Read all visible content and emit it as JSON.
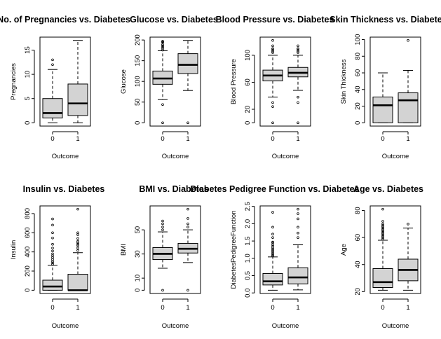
{
  "chart_data": [
    {
      "type": "boxplot",
      "title": "No. of Pregnancies vs. Diabetes",
      "xlabel": "Outcome",
      "ylabel": "Pregnancies",
      "categories": [
        "0",
        "1"
      ],
      "ylim": [
        0,
        17
      ],
      "yticks": [
        0,
        5,
        10,
        15
      ],
      "boxes": [
        {
          "min": 0,
          "q1": 1,
          "median": 2,
          "q3": 5,
          "max": 11,
          "outliers": [
            12,
            13
          ]
        },
        {
          "min": 0,
          "q1": 1.5,
          "median": 4,
          "q3": 8,
          "max": 17,
          "outliers": []
        }
      ]
    },
    {
      "type": "boxplot",
      "title": "Glucose vs. Diabetes",
      "xlabel": "Outcome",
      "ylabel": "Glucose",
      "categories": [
        "0",
        "1"
      ],
      "ylim": [
        0,
        199
      ],
      "yticks": [
        0,
        50,
        100,
        150,
        200
      ],
      "boxes": [
        {
          "min": 56,
          "q1": 93,
          "median": 107,
          "q3": 125,
          "max": 174,
          "outliers": [
            0,
            44,
            176,
            180,
            183,
            186,
            189,
            194,
            196,
            197
          ]
        },
        {
          "min": 78,
          "q1": 119,
          "median": 140,
          "q3": 167,
          "max": 199,
          "outliers": [
            0
          ]
        }
      ]
    },
    {
      "type": "boxplot",
      "title": "Blood Pressure vs. Diabetes",
      "xlabel": "Outcome",
      "ylabel": "Blood Pressure",
      "categories": [
        "0",
        "1"
      ],
      "ylim": [
        0,
        122
      ],
      "yticks": [
        0,
        20,
        60,
        100
      ],
      "boxes": [
        {
          "min": 38,
          "q1": 62,
          "median": 70,
          "q3": 78,
          "max": 100,
          "outliers": [
            0,
            24,
            30,
            104,
            106,
            108,
            110,
            114,
            122
          ]
        },
        {
          "min": 48,
          "q1": 68,
          "median": 74,
          "q3": 82,
          "max": 100,
          "outliers": [
            0,
            30,
            38,
            104,
            106,
            108,
            110,
            114
          ]
        }
      ]
    },
    {
      "type": "boxplot",
      "title": "Skin Thickness vs. Diabetes",
      "xlabel": "Outcome",
      "ylabel": "Skin Thickness",
      "categories": [
        "0",
        "1"
      ],
      "ylim": [
        0,
        99
      ],
      "yticks": [
        0,
        20,
        40,
        60,
        80,
        100
      ],
      "boxes": [
        {
          "min": 0,
          "q1": 0,
          "median": 21,
          "q3": 31,
          "max": 60,
          "outliers": []
        },
        {
          "min": 0,
          "q1": 0,
          "median": 27,
          "q3": 36,
          "max": 63,
          "outliers": [
            99
          ]
        }
      ]
    },
    {
      "type": "boxplot",
      "title": "Insulin vs. Diabetes",
      "xlabel": "Outcome",
      "ylabel": "Insulin",
      "categories": [
        "0",
        "1"
      ],
      "ylim": [
        0,
        846
      ],
      "yticks": [
        0,
        200,
        400,
        600,
        800
      ],
      "boxes": [
        {
          "min": 0,
          "q1": 0,
          "median": 39,
          "q3": 105,
          "max": 260,
          "outliers": [
            270,
            285,
            300,
            320,
            340,
            360,
            380,
            410,
            440,
            480,
            545,
            600,
            680,
            744
          ]
        },
        {
          "min": 0,
          "q1": 0,
          "median": 0,
          "q3": 167,
          "max": 392,
          "outliers": [
            415,
            440,
            465,
            480,
            495,
            510,
            540,
            580,
            600,
            846
          ]
        }
      ]
    },
    {
      "type": "boxplot",
      "title": "BMI vs. Diabetes",
      "xlabel": "Outcome",
      "ylabel": "BMI",
      "categories": [
        "0",
        "1"
      ],
      "ylim": [
        0,
        67.1
      ],
      "yticks": [
        0,
        10,
        30,
        50
      ],
      "boxes": [
        {
          "min": 18.2,
          "q1": 25.4,
          "median": 30.1,
          "q3": 35.3,
          "max": 48.3,
          "outliers": [
            0,
            50,
            52.3,
            55,
            57.3
          ]
        },
        {
          "min": 22.9,
          "q1": 30.8,
          "median": 34.3,
          "q3": 38.8,
          "max": 50,
          "outliers": [
            0,
            52.3,
            55,
            59.4,
            67.1
          ]
        }
      ]
    },
    {
      "type": "boxplot",
      "title": "Diabetes Pedigree Function vs. Diabetes",
      "xlabel": "Outcome",
      "ylabel": "DiabetesPedigreeFunction",
      "categories": [
        "0",
        "1"
      ],
      "ylim": [
        0.078,
        2.42
      ],
      "yticks": [
        0.0,
        0.5,
        1.0,
        1.5,
        2.0,
        2.5
      ],
      "ytick_labels": [
        "0.0",
        "0.5",
        "1.0",
        "1.5",
        "2.0",
        "2.5"
      ],
      "boxes": [
        {
          "min": 0.078,
          "q1": 0.23,
          "median": 0.336,
          "q3": 0.562,
          "max": 1.04,
          "outliers": [
            1.07,
            1.1,
            1.14,
            1.18,
            1.22,
            1.26,
            1.3,
            1.35,
            1.39,
            1.45,
            1.47,
            1.6,
            1.7,
            1.9,
            2.33
          ]
        },
        {
          "min": 0.088,
          "q1": 0.262,
          "median": 0.449,
          "q3": 0.728,
          "max": 1.39,
          "outliers": [
            1.6,
            1.73,
            1.9,
            2.14,
            2.29,
            2.42
          ]
        }
      ]
    },
    {
      "type": "boxplot",
      "title": "Age vs. Diabetes",
      "xlabel": "Outcome",
      "ylabel": "Age",
      "categories": [
        "0",
        "1"
      ],
      "ylim": [
        21,
        81
      ],
      "yticks": [
        20,
        40,
        60,
        80
      ],
      "boxes": [
        {
          "min": 21,
          "q1": 23,
          "median": 27,
          "q3": 37,
          "max": 58,
          "outliers": [
            59,
            60,
            61,
            62,
            63,
            64,
            65,
            66,
            67,
            68,
            69,
            70,
            72,
            81
          ]
        },
        {
          "min": 21,
          "q1": 28,
          "median": 36,
          "q3": 44,
          "max": 67,
          "outliers": [
            70
          ]
        }
      ]
    }
  ]
}
